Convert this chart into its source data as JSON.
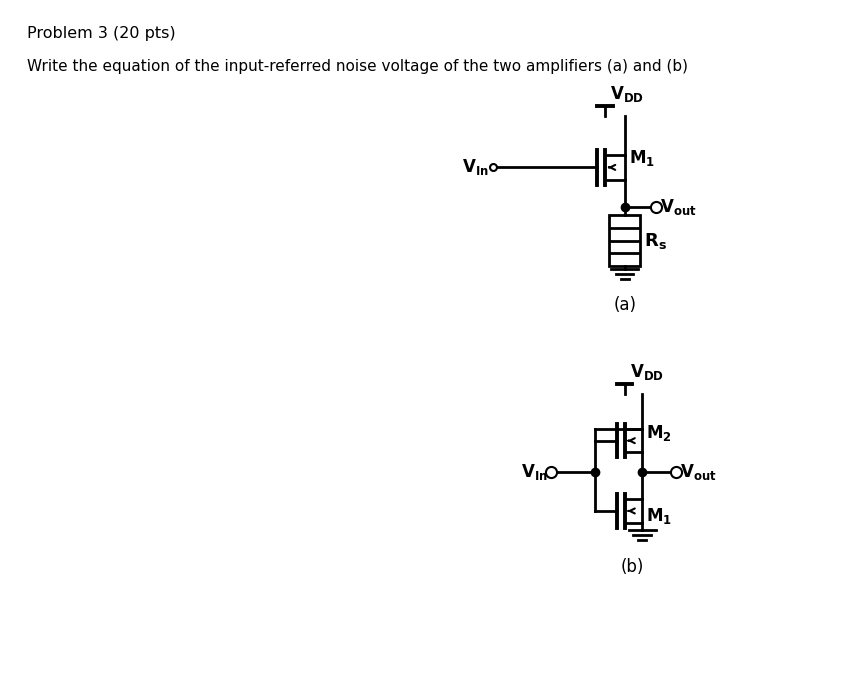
{
  "title_line1": "Problem 3 (20 pts)",
  "title_line2": "Write the equation of the input-referred noise voltage of the two amplifiers (a) and (b)",
  "bg_color": "#ffffff",
  "text_color": "#000000",
  "circuit_a_label": "(a)",
  "circuit_b_label": "(b)"
}
